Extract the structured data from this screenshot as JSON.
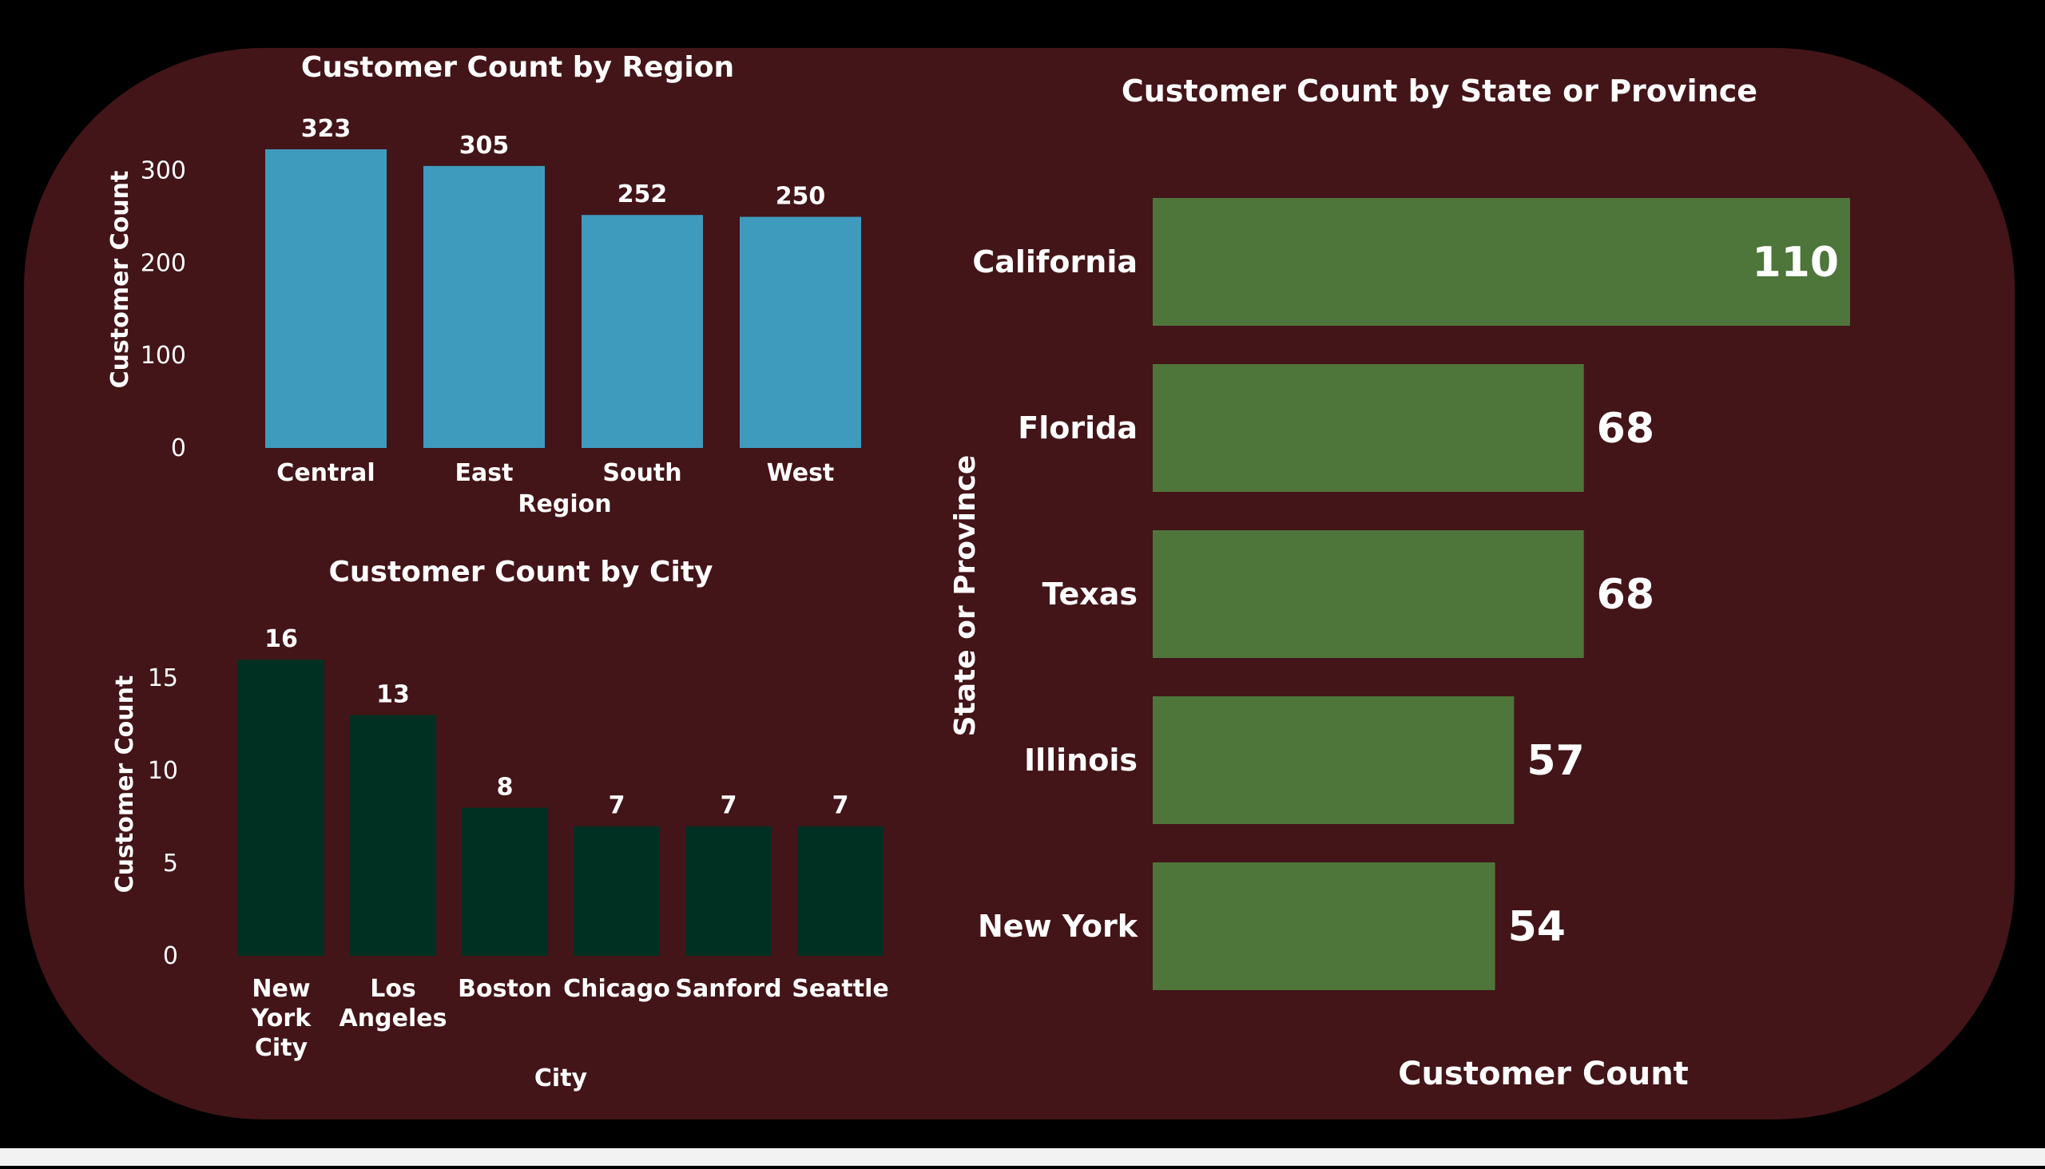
{
  "colors": {
    "page_background": "#000000",
    "panel_background": "#431518",
    "region_bar": "#3f9bbd",
    "city_bar": "#003022",
    "state_bar": "#4e753a",
    "text": "#ffffff",
    "bottom_strip": "#f2f2f2"
  },
  "chart_data": [
    {
      "type": "bar",
      "title": "Customer Count by Region",
      "xlabel": "Region",
      "ylabel": "Customer Count",
      "categories": [
        "Central",
        "East",
        "South",
        "West"
      ],
      "values": [
        323,
        305,
        252,
        250
      ],
      "ylim": [
        0,
        323
      ],
      "yticks": [
        0,
        100,
        200,
        300
      ],
      "grid": false,
      "data_labels": true
    },
    {
      "type": "bar",
      "title": "Customer Count by City",
      "xlabel": "City",
      "ylabel": "Customer Count",
      "categories": [
        "New York City",
        "Los Angeles",
        "Boston",
        "Chicago",
        "Sanford",
        "Seattle"
      ],
      "values": [
        16,
        13,
        8,
        7,
        7,
        7
      ],
      "ylim": [
        0,
        16
      ],
      "yticks": [
        0,
        5,
        10,
        15
      ],
      "grid": false,
      "data_labels": true
    },
    {
      "type": "bar",
      "orientation": "horizontal",
      "title": "Customer Count by State or Province",
      "xlabel": "Customer Count",
      "ylabel": "State or Province",
      "categories": [
        "California",
        "Florida",
        "Texas",
        "Illinois",
        "New York"
      ],
      "values": [
        110,
        68,
        68,
        57,
        54
      ],
      "xlim": [
        0,
        110
      ],
      "grid": false,
      "data_labels": true
    }
  ]
}
